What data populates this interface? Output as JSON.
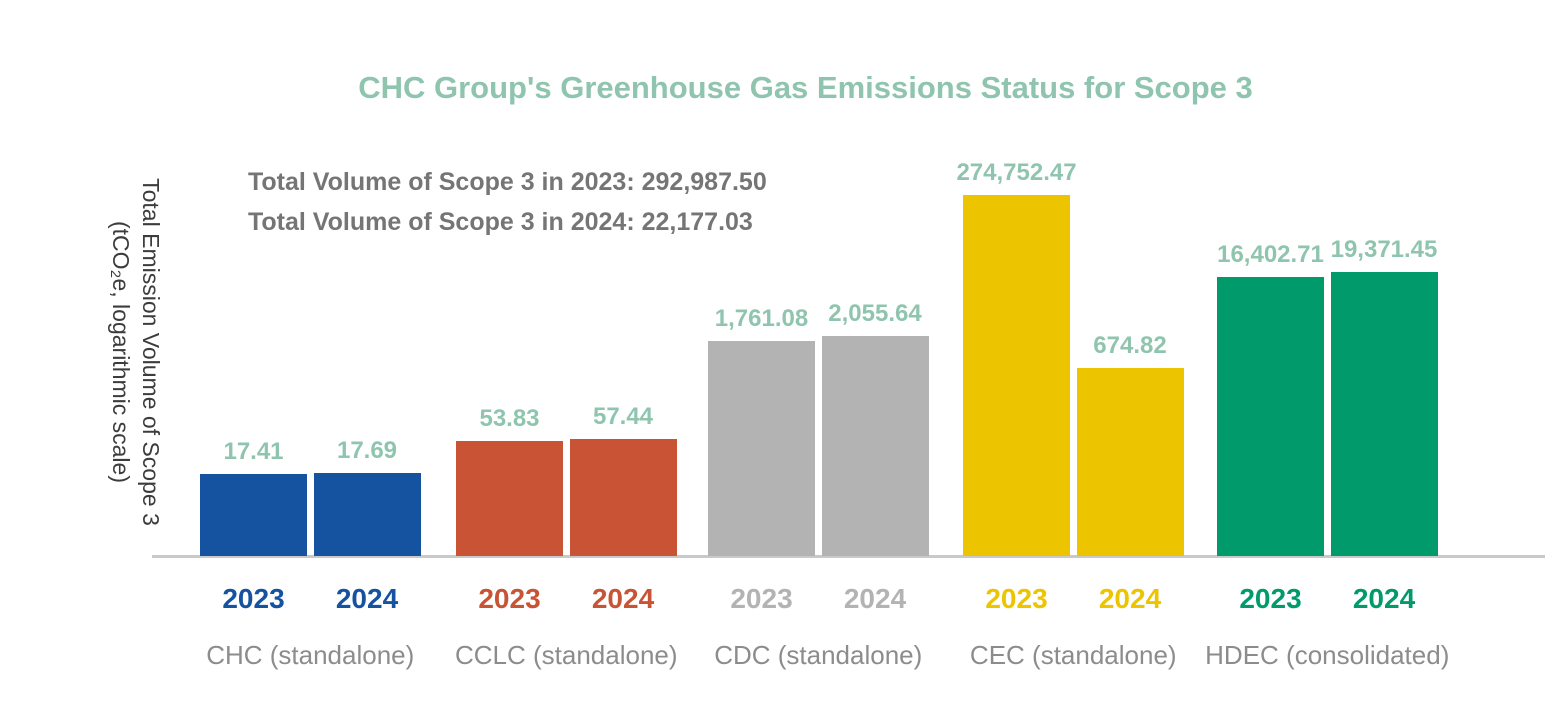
{
  "title": {
    "text": "CHC Group's Greenhouse Gas Emissions Status for Scope 3",
    "color": "#8fc4ae"
  },
  "annotations": {
    "line1": "Total Volume of Scope 3 in 2023: 292,987.50",
    "line2": "Total Volume of Scope 3 in 2024: 22,177.03",
    "color": "#757575"
  },
  "y_axis": {
    "label_line1": "Total Emission Volume of Scope 3",
    "label_line2": "(tCO₂e, logarithmic scale)"
  },
  "chart_data": {
    "type": "bar",
    "scale": "logarithmic (log10), baseline at 1",
    "title": "CHC Group's Greenhouse Gas Emissions Status for Scope 3",
    "ylabel": "Total Emission Volume of Scope 3 (tCO₂e, logarithmic scale)",
    "xlabel": "",
    "grid": false,
    "legend_position": "none",
    "categories": [
      "CHC (standalone)",
      "CCLC (standalone)",
      "CDC (standalone)",
      "CEC (standalone)",
      "HDEC (consolidated)"
    ],
    "series": [
      {
        "name": "2023",
        "values": [
          17.41,
          53.83,
          1761.08,
          274752.47,
          16402.71
        ],
        "labels": [
          "17.41",
          "53.83",
          "1,761.08",
          "274,752.47",
          "16,402.71"
        ]
      },
      {
        "name": "2024",
        "values": [
          17.69,
          57.44,
          2055.64,
          674.82,
          19371.45
        ],
        "labels": [
          "17.69",
          "57.44",
          "2,055.64",
          "674.82",
          "19,371.45"
        ]
      }
    ],
    "group_colors": [
      "#15529f",
      "#c85435",
      "#b3b3b3",
      "#ecc400",
      "#009a6b"
    ],
    "value_label_color": "#8fc4ae",
    "category_label_color": "#8c8c8c",
    "totals": {
      "total_2023": "292,987.50",
      "total_2024": "22,177.03"
    }
  }
}
